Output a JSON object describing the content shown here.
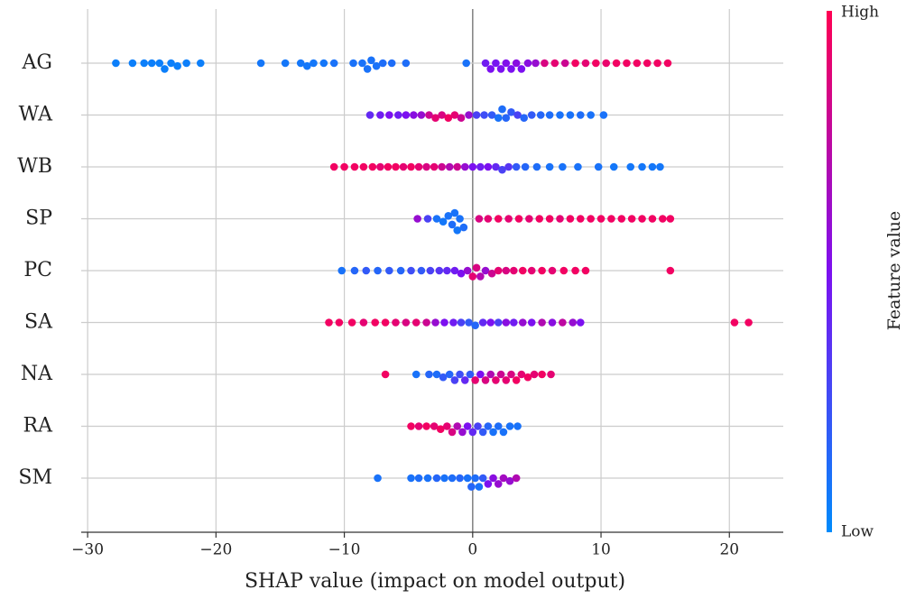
{
  "chart_data": {
    "type": "beeswarm",
    "xlabel": "SHAP value (impact on model output)",
    "colorbar_label": "Feature value",
    "colorbar_high": "High",
    "colorbar_low": "Low",
    "colors": {
      "low": "#008bfb",
      "mid": "#7c10f0",
      "high": "#ff0052"
    },
    "xlim": [
      -30.5,
      24.2
    ],
    "xticks": [
      {
        "value": -30,
        "label": "−30"
      },
      {
        "value": -20,
        "label": "−20"
      },
      {
        "value": -10,
        "label": "−10"
      },
      0,
      10,
      20
    ],
    "grid": true,
    "series": [
      {
        "name": "AG",
        "values": [
          -27.8,
          -26.5,
          -25.6,
          -25,
          -24.4,
          -24,
          -23.5,
          -23,
          -22.3,
          -21.2,
          -16.5,
          -14.6,
          -13.4,
          -12.9,
          -12.4,
          -11.6,
          -10.8,
          -9.3,
          -8.6,
          -8.2,
          -7.9,
          -7.5,
          -7,
          -6.3,
          -5.2,
          -0.5,
          1,
          1.4,
          1.8,
          2.2,
          2.6,
          3,
          3.4,
          3.8,
          4.3,
          4.9,
          5.6,
          6.4,
          7.2,
          8,
          8.8,
          9.6,
          10.4,
          11.2,
          12,
          12.8,
          13.6,
          14.4,
          15.2
        ],
        "feature_values": [
          0.05,
          0.05,
          0.05,
          0.05,
          0.05,
          0.05,
          0.05,
          0.05,
          0.05,
          0.05,
          0.08,
          0.08,
          0.08,
          0.08,
          0.08,
          0.08,
          0.1,
          0.1,
          0.1,
          0.1,
          0.1,
          0.1,
          0.12,
          0.12,
          0.12,
          0.1,
          0.45,
          0.5,
          0.48,
          0.5,
          0.52,
          0.5,
          0.55,
          0.5,
          0.55,
          0.6,
          0.85,
          0.9,
          0.8,
          0.95,
          0.9,
          0.95,
          0.92,
          0.95,
          0.95,
          0.95,
          0.95,
          0.95,
          0.95
        ]
      },
      {
        "name": "WA",
        "values": [
          -8,
          -7.2,
          -6.5,
          -5.8,
          -5.2,
          -4.6,
          -4,
          -3.4,
          -2.9,
          -2.4,
          -1.9,
          -1.4,
          -0.9,
          -0.3,
          0.3,
          0.9,
          1.5,
          2,
          2.3,
          2.6,
          3,
          3.5,
          4,
          4.6,
          5.3,
          6,
          6.8,
          7.6,
          8.4,
          9.2,
          10.2
        ],
        "feature_values": [
          0.4,
          0.45,
          0.5,
          0.45,
          0.5,
          0.55,
          0.6,
          0.8,
          0.9,
          0.85,
          0.95,
          0.9,
          0.8,
          0.6,
          0.3,
          0.25,
          0.2,
          0.1,
          0.12,
          0.15,
          0.2,
          0.3,
          0.15,
          0.2,
          0.15,
          0.12,
          0.1,
          0.1,
          0.12,
          0.1,
          0.1
        ]
      },
      {
        "name": "WB",
        "values": [
          -10.8,
          -10,
          -9.2,
          -8.5,
          -7.8,
          -7.2,
          -6.6,
          -6,
          -5.4,
          -4.8,
          -4.2,
          -3.6,
          -3,
          -2.4,
          -1.8,
          -1.2,
          -0.6,
          0,
          0.6,
          1.2,
          1.8,
          2.3,
          2.8,
          3.4,
          4.1,
          5,
          6,
          7,
          8.2,
          9.8,
          11,
          12.3,
          13.2,
          14,
          14.6
        ],
        "feature_values": [
          0.95,
          0.95,
          0.95,
          0.95,
          0.95,
          0.9,
          0.95,
          0.95,
          0.9,
          0.95,
          0.9,
          0.85,
          0.9,
          0.8,
          0.7,
          0.8,
          0.6,
          0.5,
          0.45,
          0.5,
          0.4,
          0.3,
          0.35,
          0.2,
          0.15,
          0.12,
          0.1,
          0.1,
          0.1,
          0.1,
          0.08,
          0.08,
          0.08,
          0.08,
          0.08
        ]
      },
      {
        "name": "SP",
        "values": [
          -4.3,
          -3.5,
          -2.8,
          -2.3,
          -1.9,
          -1.6,
          -1.4,
          -1.2,
          -1,
          -0.7,
          0.5,
          1.2,
          2,
          2.8,
          3.6,
          4.4,
          5.2,
          6,
          6.8,
          7.6,
          8.4,
          9.2,
          10,
          10.8,
          11.6,
          12.4,
          13.2,
          14,
          14.8,
          15.4
        ],
        "feature_values": [
          0.6,
          0.3,
          0.1,
          0.08,
          0.1,
          0.12,
          0.1,
          0.08,
          0.1,
          0.12,
          0.85,
          0.9,
          0.95,
          0.9,
          0.95,
          0.9,
          0.95,
          0.95,
          0.9,
          0.95,
          0.95,
          0.95,
          0.95,
          0.95,
          0.95,
          0.95,
          0.95,
          0.95,
          0.95,
          0.95
        ]
      },
      {
        "name": "PC",
        "values": [
          -10.2,
          -9.2,
          -8.3,
          -7.4,
          -6.5,
          -5.6,
          -4.8,
          -4,
          -3.3,
          -2.6,
          -2,
          -1.4,
          -0.9,
          -0.4,
          0,
          0.3,
          0.6,
          1,
          1.5,
          2,
          2.6,
          3.2,
          3.9,
          4.6,
          5.4,
          6.2,
          7.1,
          8,
          8.8,
          15.4
        ],
        "feature_values": [
          0.1,
          0.15,
          0.2,
          0.15,
          0.2,
          0.15,
          0.25,
          0.2,
          0.3,
          0.35,
          0.4,
          0.45,
          0.5,
          0.6,
          0.9,
          0.85,
          0.7,
          0.6,
          0.8,
          0.9,
          0.85,
          0.9,
          0.95,
          0.9,
          0.95,
          0.9,
          0.95,
          0.95,
          0.95,
          0.95
        ]
      },
      {
        "name": "SA",
        "values": [
          -11.2,
          -10.4,
          -9.4,
          -8.5,
          -7.6,
          -6.8,
          -6,
          -5.2,
          -4.4,
          -3.6,
          -2.9,
          -2.2,
          -1.5,
          -0.9,
          -0.3,
          0.2,
          0.8,
          1.4,
          2,
          2.6,
          3.2,
          3.9,
          4.6,
          5.4,
          6.2,
          7,
          7.8,
          8.4,
          20.4,
          21.5
        ],
        "feature_values": [
          0.95,
          0.95,
          0.95,
          0.9,
          0.95,
          0.95,
          0.9,
          0.85,
          0.9,
          0.8,
          0.6,
          0.5,
          0.45,
          0.3,
          0.2,
          0.15,
          0.4,
          0.5,
          0.3,
          0.55,
          0.45,
          0.6,
          0.5,
          0.7,
          0.55,
          0.75,
          0.6,
          0.5,
          0.95,
          0.95
        ]
      },
      {
        "name": "NA",
        "values": [
          -6.8,
          -4.4,
          -3.4,
          -2.8,
          -2.3,
          -1.8,
          -1.4,
          -1,
          -0.6,
          -0.2,
          0.2,
          0.6,
          1,
          1.4,
          1.8,
          2.2,
          2.6,
          3,
          3.4,
          3.8,
          4.3,
          4.8,
          5.4,
          6.1
        ],
        "feature_values": [
          0.95,
          0.1,
          0.15,
          0.12,
          0.2,
          0.15,
          0.3,
          0.25,
          0.4,
          0.2,
          0.9,
          0.5,
          0.85,
          0.7,
          0.9,
          0.8,
          0.9,
          0.85,
          0.95,
          0.9,
          0.95,
          0.9,
          0.95,
          0.9
        ]
      },
      {
        "name": "RA",
        "values": [
          -4.8,
          -4.2,
          -3.6,
          -3,
          -2.5,
          -2,
          -1.6,
          -1.2,
          -0.8,
          -0.4,
          0,
          0.4,
          0.8,
          1.2,
          1.6,
          2,
          2.4,
          2.9,
          3.5
        ],
        "feature_values": [
          0.95,
          0.9,
          0.95,
          0.9,
          0.95,
          0.9,
          0.85,
          0.7,
          0.6,
          0.5,
          0.4,
          0.3,
          0.2,
          0.15,
          0.1,
          0.12,
          0.1,
          0.1,
          0.1
        ]
      },
      {
        "name": "SM",
        "values": [
          -7.4,
          -4.8,
          -4.2,
          -3.5,
          -2.8,
          -2.2,
          -1.6,
          -1,
          -0.4,
          -0.1,
          0.2,
          0.5,
          0.8,
          1.2,
          1.6,
          2,
          2.4,
          2.9,
          3.4
        ],
        "feature_values": [
          0.1,
          0.1,
          0.12,
          0.1,
          0.15,
          0.1,
          0.12,
          0.15,
          0.1,
          0.15,
          0.12,
          0.1,
          0.2,
          0.5,
          0.55,
          0.6,
          0.65,
          0.6,
          0.7
        ]
      }
    ]
  }
}
